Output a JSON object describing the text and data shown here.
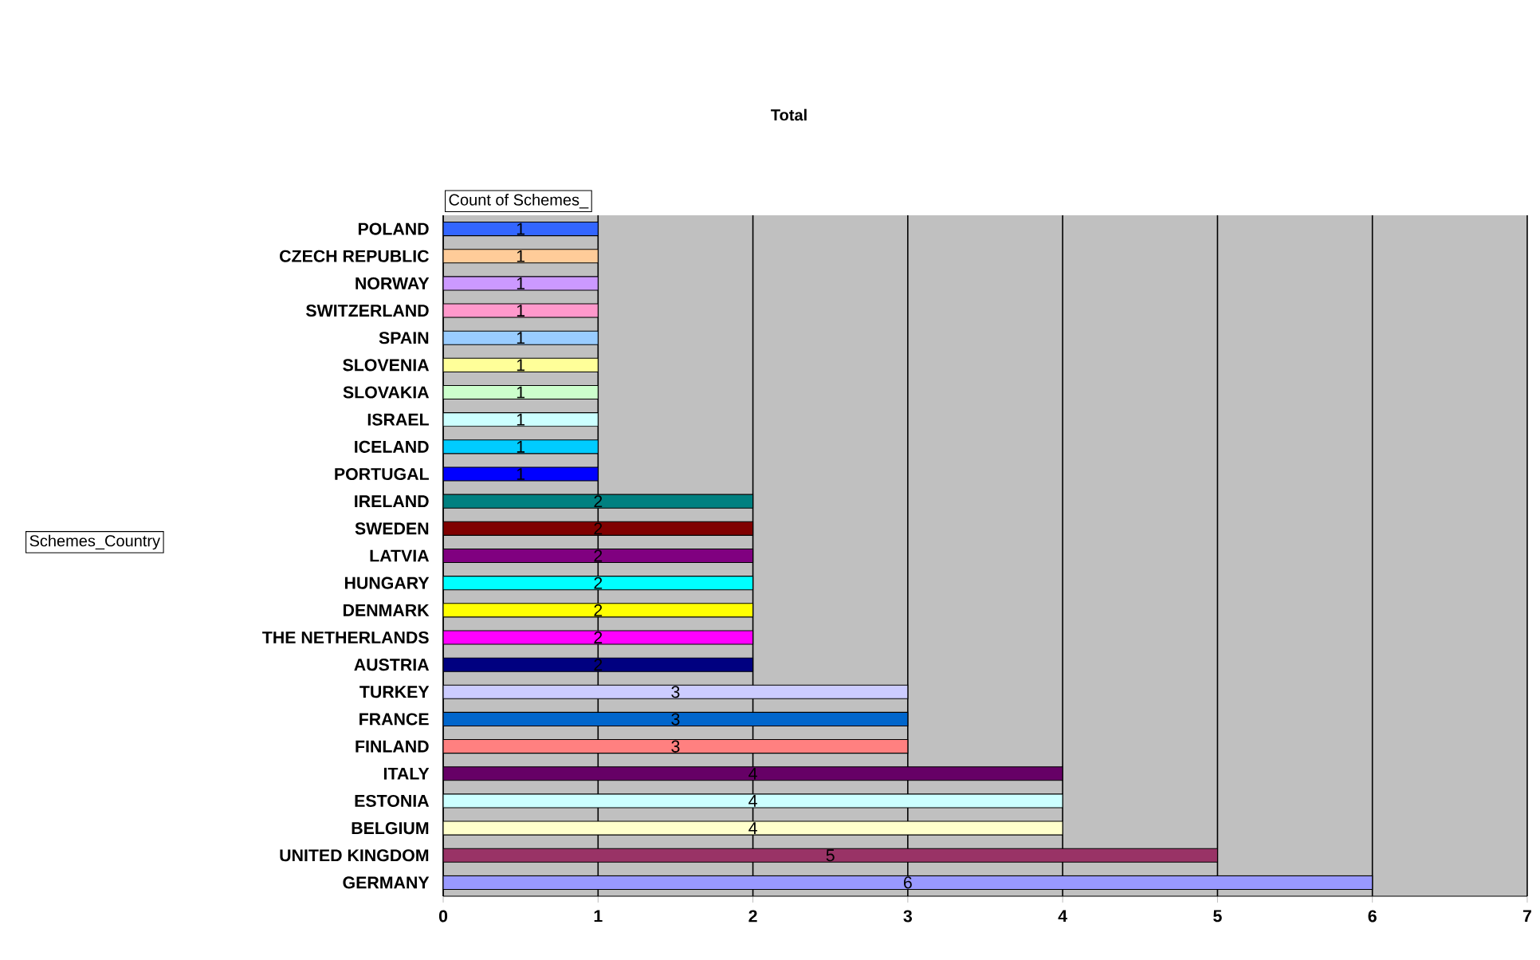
{
  "chart_data": {
    "type": "bar",
    "orientation": "horizontal",
    "title": "Total",
    "annotations": [
      "Count of Schemes_",
      "Schemes_Country"
    ],
    "categories": [
      "POLAND",
      "CZECH REPUBLIC",
      "NORWAY",
      "SWITZERLAND",
      "SPAIN",
      "SLOVENIA",
      "SLOVAKIA",
      "ISRAEL",
      "ICELAND",
      "PORTUGAL",
      "IRELAND",
      "SWEDEN",
      "LATVIA",
      "HUNGARY",
      "DENMARK",
      "THE NETHERLANDS",
      "AUSTRIA",
      "TURKEY",
      "FRANCE",
      "FINLAND",
      "ITALY",
      "ESTONIA",
      "BELGIUM",
      "UNITED KINGDOM",
      "GERMANY"
    ],
    "values": [
      1,
      1,
      1,
      1,
      1,
      1,
      1,
      1,
      1,
      1,
      2,
      2,
      2,
      2,
      2,
      2,
      2,
      3,
      3,
      3,
      4,
      4,
      4,
      5,
      6
    ],
    "colors": [
      "#3366ff",
      "#ffcc99",
      "#cc99ff",
      "#ff99cc",
      "#99ccff",
      "#ffff99",
      "#ccffcc",
      "#ccffff",
      "#00ccff",
      "#0000ff",
      "#008080",
      "#800000",
      "#800080",
      "#00ffff",
      "#ffff00",
      "#ff00ff",
      "#000080",
      "#ccccff",
      "#0066cc",
      "#ff8080",
      "#660066",
      "#ccffff",
      "#ffffcc",
      "#993366",
      "#9999ff"
    ],
    "xlim": [
      0,
      7
    ],
    "xticks": [
      0,
      1,
      2,
      3,
      4,
      5,
      6,
      7
    ],
    "grid": "x",
    "data_labels": true
  }
}
